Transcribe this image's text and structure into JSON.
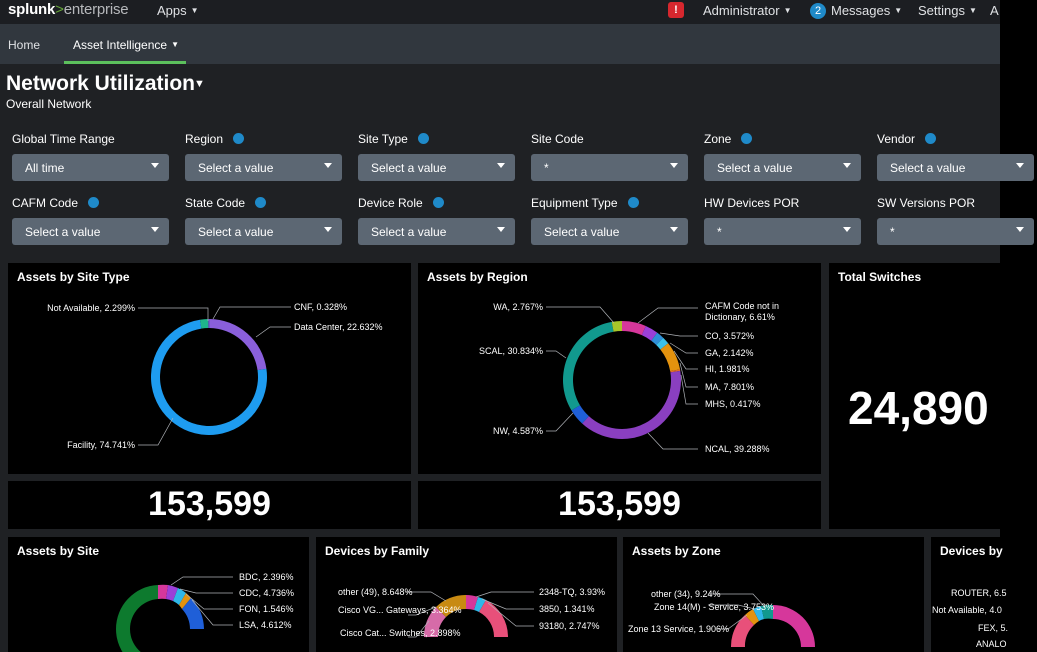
{
  "topbar": {
    "logo": {
      "brand": "splunk",
      "sep": ">",
      "product": "enterprise"
    },
    "apps": "Apps",
    "alert": "!",
    "user": "Administrator",
    "messages_count": "2",
    "messages": "Messages",
    "settings": "Settings",
    "more": "A"
  },
  "appbar": {
    "home": "Home",
    "asset_intel": "Asset Intelligence"
  },
  "dashboard": {
    "title": "Network Utilization",
    "subtitle": "Overall Network"
  },
  "filters": [
    {
      "label": "Global Time Range",
      "value": "All time",
      "info": false
    },
    {
      "label": "Region",
      "value": "Select a value",
      "info": true
    },
    {
      "label": "Site Type",
      "value": "Select a value",
      "info": true
    },
    {
      "label": "Site Code",
      "value": "*",
      "info": false
    },
    {
      "label": "Zone",
      "value": "Select a value",
      "info": true
    },
    {
      "label": "Vendor",
      "value": "Select a value",
      "info": true
    },
    {
      "label": "CAFM Code",
      "value": "Select a value",
      "info": true
    },
    {
      "label": "State Code",
      "value": "Select a value",
      "info": true
    },
    {
      "label": "Device Role",
      "value": "Select a value",
      "info": true
    },
    {
      "label": "Equipment Type",
      "value": "Select a value",
      "info": true
    },
    {
      "label": "HW Devices POR",
      "value": "*",
      "info": false
    },
    {
      "label": "SW Versions POR",
      "value": "*",
      "info": false
    }
  ],
  "panels": {
    "site_type": {
      "title": "Assets by Site Type",
      "total": "153,599"
    },
    "region": {
      "title": "Assets by Region",
      "total": "153,599"
    },
    "switches": {
      "title": "Total Switches",
      "value": "24,890"
    },
    "site": {
      "title": "Assets by Site"
    },
    "family": {
      "title": "Devices by Family"
    },
    "zone": {
      "title": "Assets by Zone"
    },
    "devices_by": {
      "title": "Devices by"
    }
  },
  "chart_data": [
    {
      "type": "pie",
      "title": "Assets by Site Type",
      "slices": [
        {
          "label": "Not Available, 2.299%",
          "value": 2.299,
          "color": "#1fb58c"
        },
        {
          "label": "CNF, 0.328%",
          "value": 0.328,
          "color": "#6a5cd2"
        },
        {
          "label": "Data Center, 22.632%",
          "value": 22.632,
          "color": "#8a5fdb"
        },
        {
          "label": "Facility, 74.741%",
          "value": 74.741,
          "color": "#1e9cf0"
        }
      ]
    },
    {
      "type": "pie",
      "title": "Assets by Region",
      "slices": [
        {
          "label": "CAFM Code not in Dictionary, 6.61%",
          "value": 6.61,
          "color": "#d6379b"
        },
        {
          "label": "CO, 3.572%",
          "value": 3.572,
          "color": "#9b3fd8"
        },
        {
          "label": "GA, 2.142%",
          "value": 2.142,
          "color": "#2f8fd8"
        },
        {
          "label": "HI, 1.981%",
          "value": 1.981,
          "color": "#3cc0e8"
        },
        {
          "label": "MA, 7.801%",
          "value": 7.801,
          "color": "#e3920e"
        },
        {
          "label": "MHS, 0.417%",
          "value": 0.417,
          "color": "#e26a2c"
        },
        {
          "label": "NCAL, 39.288%",
          "value": 39.288,
          "color": "#8a3fc0"
        },
        {
          "label": "NW, 4.587%",
          "value": 4.587,
          "color": "#1f5fd8"
        },
        {
          "label": "SCAL, 30.834%",
          "value": 30.834,
          "color": "#11998e"
        },
        {
          "label": "WA, 2.767%",
          "value": 2.767,
          "color": "#a8c62a"
        }
      ]
    },
    {
      "type": "pie",
      "title": "Assets by Site",
      "labels": [
        "BDC, 2.396%",
        "CDC, 4.736%",
        "FON, 1.546%",
        "LSA, 4.612%"
      ]
    },
    {
      "type": "pie",
      "title": "Devices by Family",
      "labels": [
        "other (49), 8.648%",
        "2348-TQ, 3.93%",
        "Cisco VG... Gateways, 3.364%",
        "3850, 1.341%",
        "93180, 2.747%",
        "Cisco Cat... Switches, 2.898%"
      ]
    },
    {
      "type": "pie",
      "title": "Assets by Zone",
      "labels": [
        "other (34), 9.24%",
        "Zone 14(M) - Service, 3.753%",
        "Zone 13 Service, 1.906%"
      ]
    },
    {
      "type": "bar",
      "title": "Devices by",
      "labels": [
        "ROUTER, 6.5",
        "Not Available, 4.0",
        "FEX, 5.",
        "ANALO"
      ]
    }
  ]
}
